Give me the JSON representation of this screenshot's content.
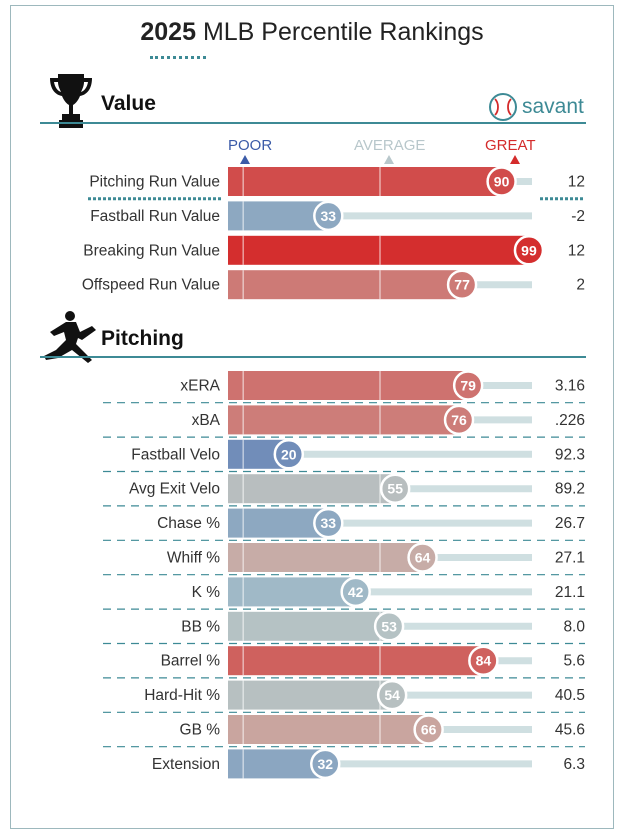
{
  "title_year": "2025",
  "title_rest": "MLB Percentile Rankings",
  "brand": "savant",
  "scale": {
    "poor": "POOR",
    "average": "AVERAGE",
    "great": "GREAT"
  },
  "colors": {
    "accent": "#3d8a95",
    "poor": "#3b5ba8",
    "average": "#b8b8b8",
    "great": "#d42b2b"
  },
  "chart_data": [
    {
      "type": "bar",
      "section": "Value",
      "xlim": [
        0,
        100
      ],
      "rows": [
        {
          "label": "Pitching Run Value",
          "percentile": 90,
          "value": "12"
        },
        {
          "label": "Fastball Run Value",
          "percentile": 33,
          "value": "-2"
        },
        {
          "label": "Breaking Run Value",
          "percentile": 99,
          "value": "12"
        },
        {
          "label": "Offspeed Run Value",
          "percentile": 77,
          "value": "2"
        }
      ]
    },
    {
      "type": "bar",
      "section": "Pitching",
      "xlim": [
        0,
        100
      ],
      "rows": [
        {
          "label": "xERA",
          "percentile": 79,
          "value": "3.16"
        },
        {
          "label": "xBA",
          "percentile": 76,
          "value": ".226"
        },
        {
          "label": "Fastball Velo",
          "percentile": 20,
          "value": "92.3"
        },
        {
          "label": "Avg Exit Velo",
          "percentile": 55,
          "value": "89.2"
        },
        {
          "label": "Chase %",
          "percentile": 33,
          "value": "26.7"
        },
        {
          "label": "Whiff %",
          "percentile": 64,
          "value": "27.1"
        },
        {
          "label": "K %",
          "percentile": 42,
          "value": "21.1"
        },
        {
          "label": "BB %",
          "percentile": 53,
          "value": "8.0"
        },
        {
          "label": "Barrel %",
          "percentile": 84,
          "value": "5.6"
        },
        {
          "label": "Hard-Hit %",
          "percentile": 54,
          "value": "40.5"
        },
        {
          "label": "GB %",
          "percentile": 66,
          "value": "45.6"
        },
        {
          "label": "Extension",
          "percentile": 32,
          "value": "6.3"
        }
      ]
    }
  ]
}
